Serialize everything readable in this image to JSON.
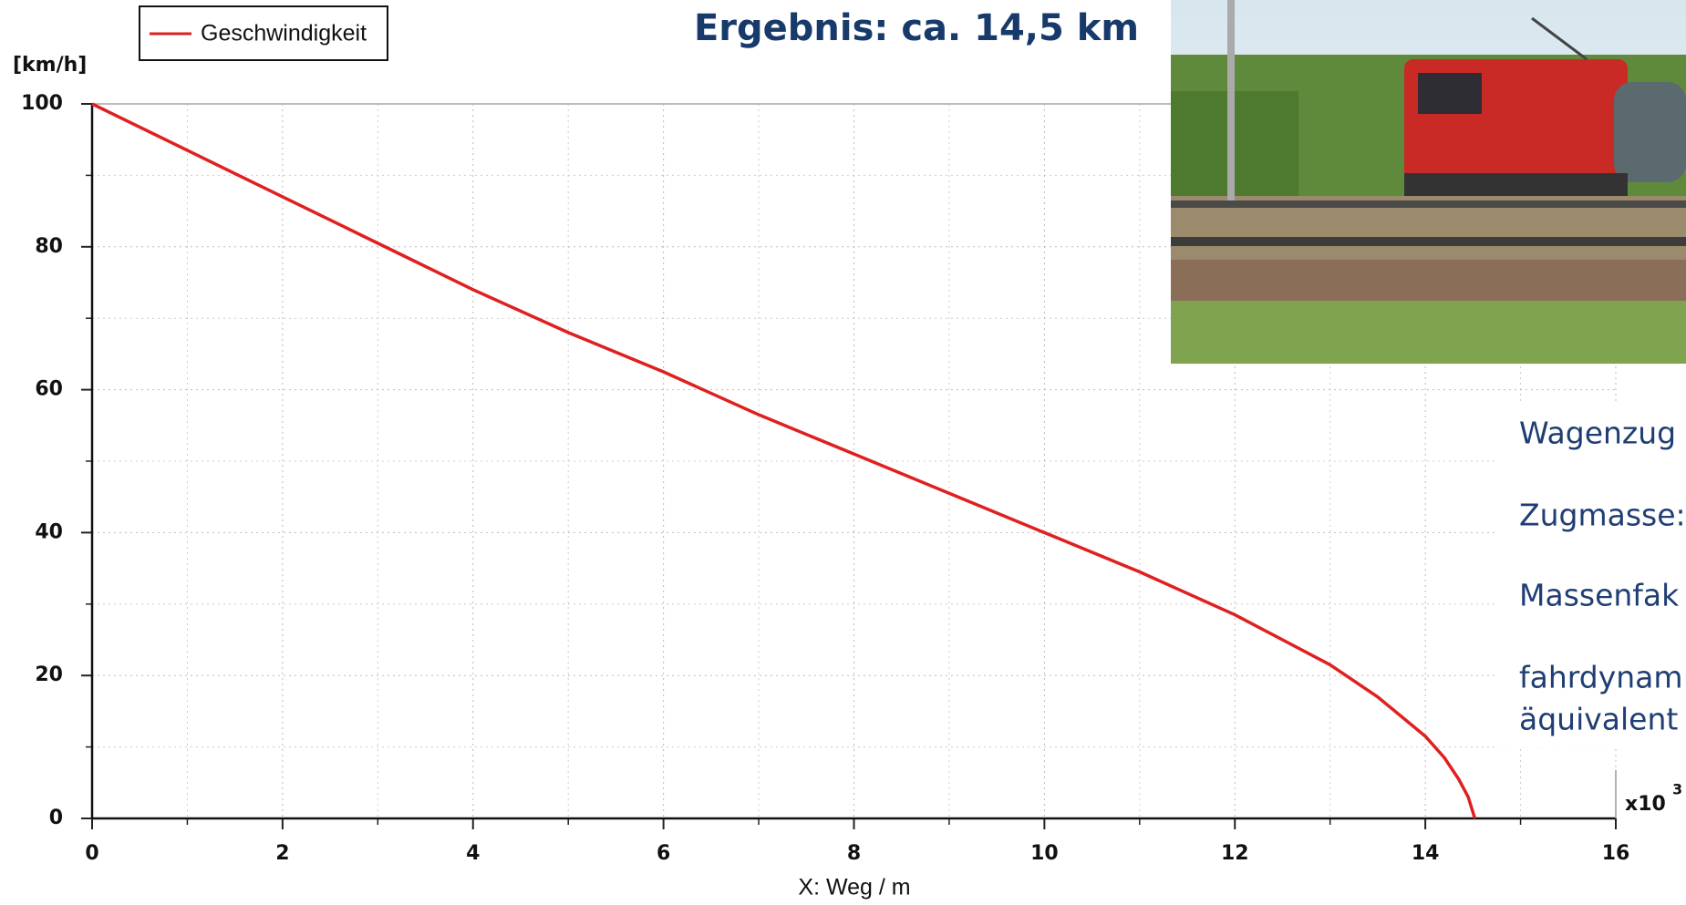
{
  "chart_data": {
    "type": "line",
    "title": "Ergebnis: ca. 14,5 km",
    "y_label": "[km/h]",
    "x_label": "X: Weg / m",
    "x_multiplier": "x10",
    "x_multiplier_exp": "3",
    "x": [
      0,
      1,
      2,
      3,
      4,
      5,
      6,
      7,
      8,
      9,
      10,
      11,
      12,
      12.5,
      13,
      13.5,
      14,
      14.2,
      14.35,
      14.45,
      14.52
    ],
    "series": [
      {
        "name": "Geschwindigkeit",
        "color": "#e02020",
        "values": [
          100,
          93.5,
          87,
          80.5,
          74,
          68,
          62.5,
          56.5,
          51,
          45.5,
          40,
          34.5,
          28.5,
          25,
          21.5,
          17,
          11.5,
          8.5,
          5.5,
          3,
          0
        ]
      }
    ],
    "xlim": [
      0,
      16
    ],
    "xticks": [
      0,
      2,
      4,
      6,
      8,
      10,
      12,
      14,
      16
    ],
    "ylim": [
      0,
      100
    ],
    "yticks": [
      0,
      20,
      40,
      60,
      80,
      100
    ],
    "grid": true
  },
  "side_texts": [
    "Wagenzug",
    "Zugmasse:",
    "Massenfak",
    "fahrdynam",
    "äquivalent"
  ]
}
